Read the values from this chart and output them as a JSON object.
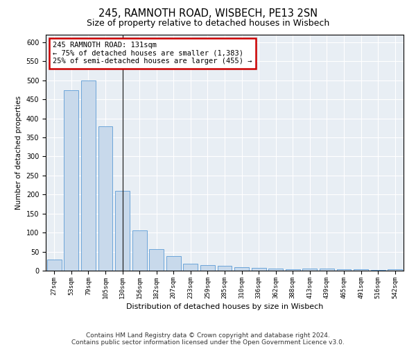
{
  "title": "245, RAMNOTH ROAD, WISBECH, PE13 2SN",
  "subtitle": "Size of property relative to detached houses in Wisbech",
  "xlabel": "Distribution of detached houses by size in Wisbech",
  "ylabel": "Number of detached properties",
  "categories": [
    "27sqm",
    "53sqm",
    "79sqm",
    "105sqm",
    "130sqm",
    "156sqm",
    "182sqm",
    "207sqm",
    "233sqm",
    "259sqm",
    "285sqm",
    "310sqm",
    "336sqm",
    "362sqm",
    "388sqm",
    "413sqm",
    "439sqm",
    "465sqm",
    "491sqm",
    "516sqm",
    "542sqm"
  ],
  "values": [
    30,
    475,
    500,
    380,
    210,
    105,
    57,
    38,
    19,
    14,
    12,
    10,
    7,
    5,
    4,
    5,
    5,
    4,
    4,
    2,
    4
  ],
  "bar_color": "#c8d9eb",
  "bar_edge_color": "#5b9bd5",
  "annotation_text": "245 RAMNOTH ROAD: 131sqm\n← 75% of detached houses are smaller (1,383)\n25% of semi-detached houses are larger (455) →",
  "annotation_box_color": "#ffffff",
  "annotation_box_edge_color": "#cc0000",
  "vline_x_index": 4,
  "ylim": [
    0,
    620
  ],
  "yticks": [
    0,
    50,
    100,
    150,
    200,
    250,
    300,
    350,
    400,
    450,
    500,
    550,
    600
  ],
  "background_color": "#e8eef4",
  "footer_line1": "Contains HM Land Registry data © Crown copyright and database right 2024.",
  "footer_line2": "Contains public sector information licensed under the Open Government Licence v3.0."
}
